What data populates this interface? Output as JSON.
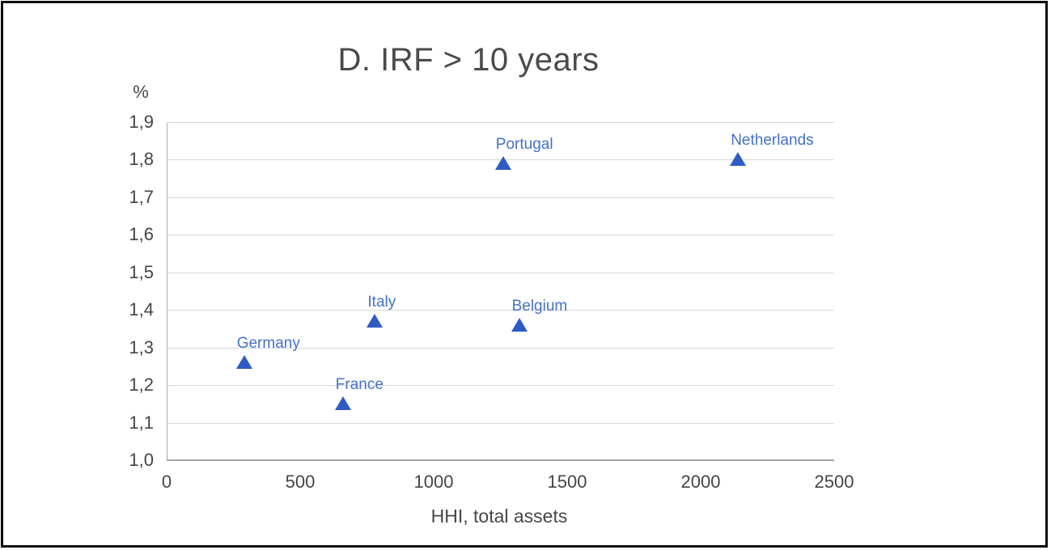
{
  "chart_data": {
    "type": "scatter",
    "title": "D. IRF > 10 years",
    "xlabel": "HHI, total assets",
    "ylabel": "%",
    "xlim": [
      0,
      2500
    ],
    "ylim": [
      1.0,
      1.9
    ],
    "grid": "horizontal",
    "legend": "none",
    "marker": "triangle-up",
    "x_ticks": [
      {
        "v": 0,
        "label": "0"
      },
      {
        "v": 500,
        "label": "500"
      },
      {
        "v": 1000,
        "label": "1000"
      },
      {
        "v": 1500,
        "label": "1500"
      },
      {
        "v": 2000,
        "label": "2000"
      },
      {
        "v": 2500,
        "label": "2500"
      }
    ],
    "y_ticks": [
      {
        "v": 1.0,
        "label": "1,0"
      },
      {
        "v": 1.1,
        "label": "1,1"
      },
      {
        "v": 1.2,
        "label": "1,2"
      },
      {
        "v": 1.3,
        "label": "1,3"
      },
      {
        "v": 1.4,
        "label": "1,4"
      },
      {
        "v": 1.5,
        "label": "1,5"
      },
      {
        "v": 1.6,
        "label": "1,6"
      },
      {
        "v": 1.7,
        "label": "1,7"
      },
      {
        "v": 1.8,
        "label": "1,8"
      },
      {
        "v": 1.9,
        "label": "1,9"
      }
    ],
    "points": [
      {
        "label": "Germany",
        "x": 290,
        "y": 1.26
      },
      {
        "label": "France",
        "x": 660,
        "y": 1.15
      },
      {
        "label": "Italy",
        "x": 780,
        "y": 1.37
      },
      {
        "label": "Belgium",
        "x": 1320,
        "y": 1.36
      },
      {
        "label": "Portugal",
        "x": 1260,
        "y": 1.79
      },
      {
        "label": "Netherlands",
        "x": 2140,
        "y": 1.8
      }
    ],
    "colors": {
      "marker": "#2f5bc4",
      "point_label": "#4472c4",
      "grid": "#d9d9d9",
      "axis_line": "#a3a3a3",
      "text": "#474747",
      "frame_border": "#0d0d0d",
      "background": "#ffffff"
    }
  }
}
